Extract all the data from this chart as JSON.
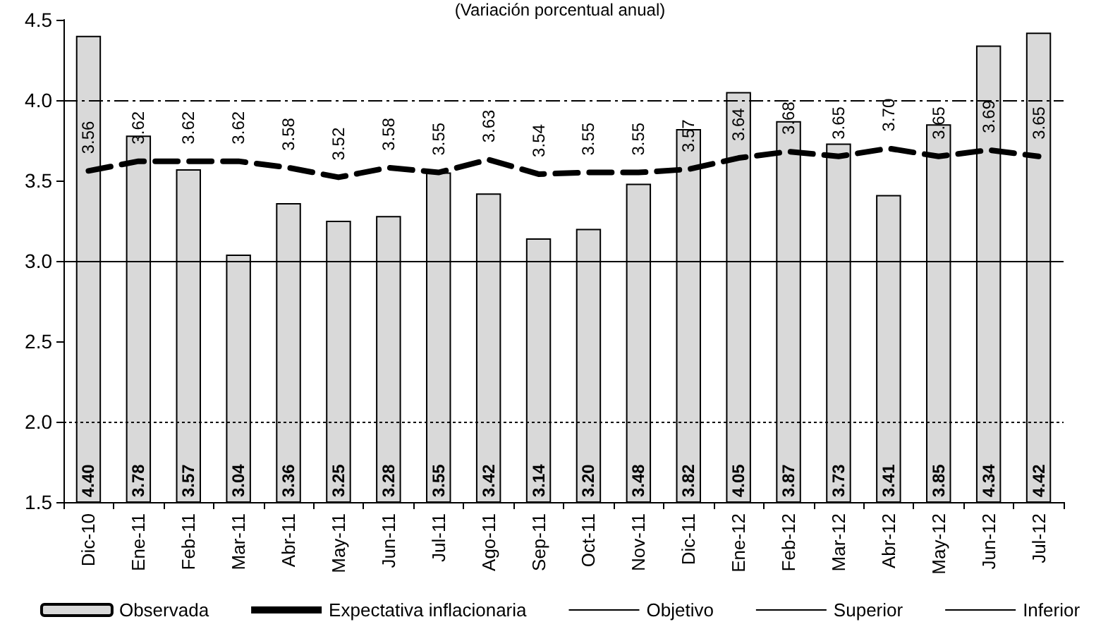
{
  "chart_data": {
    "type": "bar",
    "title": "(Variación porcentual anual)",
    "categories": [
      "Dic-10",
      "Ene-11",
      "Feb-11",
      "Mar-11",
      "Abr-11",
      "May-11",
      "Jun-11",
      "Jul-11",
      "Ago-11",
      "Sep-11",
      "Oct-11",
      "Nov-11",
      "Dic-11",
      "Ene-12",
      "Feb-12",
      "Mar-12",
      "Abr-12",
      "May-12",
      "Jun-12",
      "Jul-12"
    ],
    "series": [
      {
        "name": "Observada",
        "color": "#d9d9d9",
        "values": [
          4.4,
          3.78,
          3.57,
          3.04,
          3.36,
          3.25,
          3.28,
          3.55,
          3.42,
          3.14,
          3.2,
          3.48,
          3.82,
          4.05,
          3.87,
          3.73,
          3.41,
          3.85,
          4.34,
          4.42
        ],
        "value_labels": [
          "4.40",
          "3.78",
          "3.57",
          "3.04",
          "3.36",
          "3.25",
          "3.28",
          "3.55",
          "3.42",
          "3.14",
          "3.20",
          "3.48",
          "3.82",
          "4.05",
          "3.87",
          "3.73",
          "3.41",
          "3.85",
          "4.34",
          "4.42"
        ]
      },
      {
        "name": "Expectativa inflacionaria",
        "type": "line",
        "color": "#000000",
        "line_style": "dashed",
        "values": [
          3.56,
          3.62,
          3.62,
          3.62,
          3.58,
          3.52,
          3.58,
          3.55,
          3.63,
          3.54,
          3.55,
          3.55,
          3.57,
          3.64,
          3.68,
          3.65,
          3.7,
          3.65,
          3.69,
          3.65
        ],
        "value_labels": [
          "3.56",
          "3.62",
          "3.62",
          "3.62",
          "3.58",
          "3.52",
          "3.58",
          "3.55",
          "3.63",
          "3.54",
          "3.55",
          "3.55",
          "3.57",
          "3.64",
          "3.68",
          "3.65",
          "3.70",
          "3.65",
          "3.69",
          "3.65"
        ]
      }
    ],
    "ref_lines": [
      {
        "axis": "y",
        "value": 3,
        "label": "Objetivo",
        "color": "#000000",
        "line_style": "solid"
      },
      {
        "axis": "y",
        "value": 4,
        "label": "Superior",
        "color": "#000000",
        "line_style": "dashdot"
      },
      {
        "axis": "y",
        "value": 2,
        "label": "Inferior",
        "color": "#000000",
        "line_style": "dotted"
      }
    ],
    "ylim": [
      1.5,
      4.5
    ],
    "yticks": [
      {
        "value": 1.5,
        "label": "1.5"
      },
      {
        "value": 2,
        "label": "2.0"
      },
      {
        "value": 2.5,
        "label": "2.5"
      },
      {
        "value": 3,
        "label": "3.0"
      },
      {
        "value": 3.5,
        "label": "3.5"
      },
      {
        "value": 4,
        "label": "4.0"
      },
      {
        "value": 4.5,
        "label": "4.5"
      }
    ],
    "grid": false,
    "legend": "bottom",
    "marker": "none"
  }
}
